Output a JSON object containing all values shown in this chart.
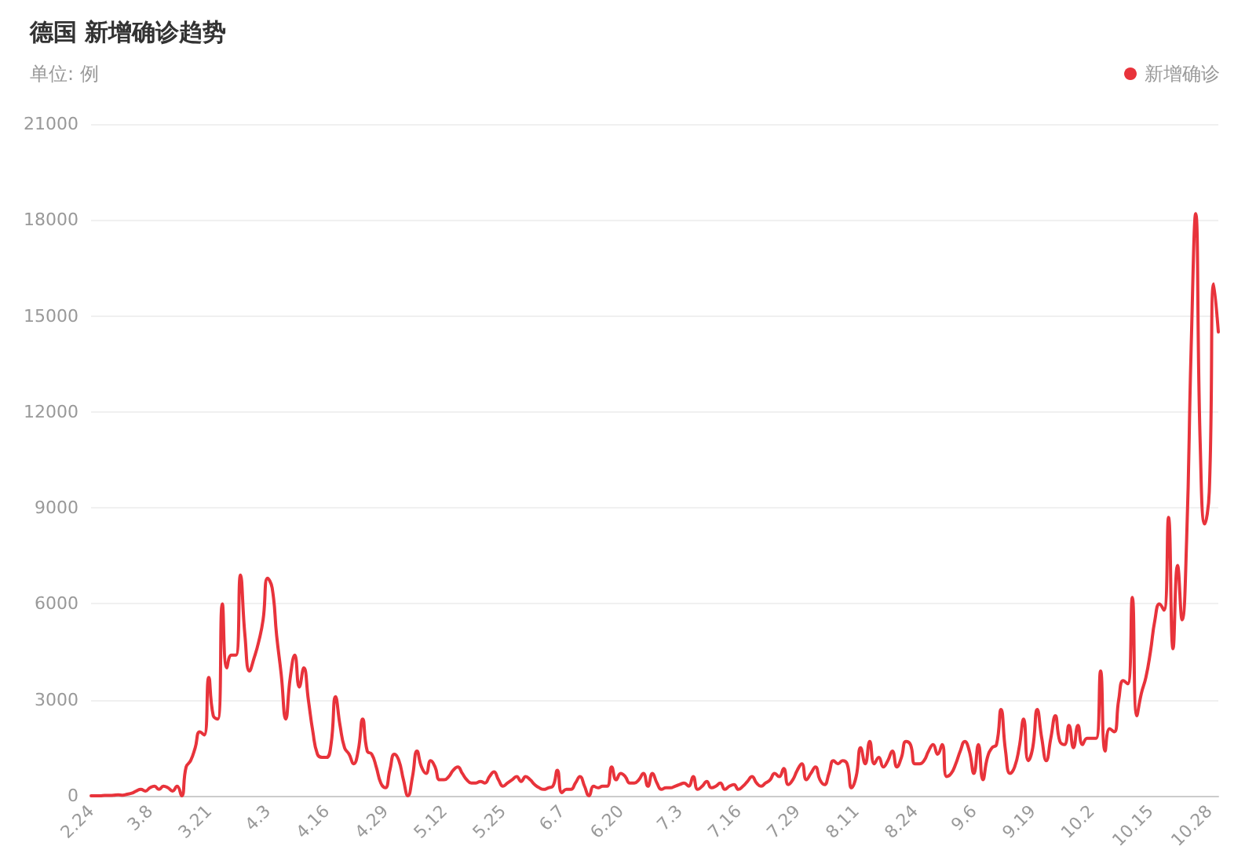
{
  "chart_data": {
    "type": "line",
    "title": "德国 新增确诊趋势",
    "subtitle": "单位: 例",
    "categories": [
      "2.24",
      null,
      null,
      null,
      null,
      null,
      null,
      null,
      null,
      null,
      null,
      null,
      null,
      "3.8",
      null,
      null,
      null,
      null,
      null,
      null,
      null,
      null,
      null,
      null,
      null,
      null,
      "3.21",
      null,
      null,
      null,
      null,
      null,
      null,
      null,
      null,
      null,
      null,
      null,
      null,
      "4.3",
      null,
      null,
      null,
      null,
      null,
      null,
      null,
      null,
      null,
      null,
      null,
      null,
      "4.16",
      null,
      null,
      null,
      null,
      null,
      null,
      null,
      null,
      null,
      null,
      null,
      null,
      "4.29",
      null,
      null,
      null,
      null,
      null,
      null,
      null,
      null,
      null,
      null,
      null,
      null,
      "5.12",
      null,
      null,
      null,
      null,
      null,
      null,
      null,
      null,
      null,
      null,
      null,
      null,
      "5.25",
      null,
      null,
      null,
      null,
      null,
      null,
      null,
      null,
      null,
      null,
      null,
      null,
      "6.7",
      null,
      null,
      null,
      null,
      null,
      null,
      null,
      null,
      null,
      null,
      null,
      null,
      "6.20",
      null,
      null,
      null,
      null,
      null,
      null,
      null,
      null,
      null,
      null,
      null,
      null,
      "7.3",
      null,
      null,
      null,
      null,
      null,
      null,
      null,
      null,
      null,
      null,
      null,
      null,
      "7.16",
      null,
      null,
      null,
      null,
      null,
      null,
      null,
      null,
      null,
      null,
      null,
      null,
      "7.29",
      null,
      null,
      null,
      null,
      null,
      null,
      null,
      null,
      null,
      null,
      null,
      null,
      "8.11",
      null,
      null,
      null,
      null,
      null,
      null,
      null,
      null,
      null,
      null,
      null,
      null,
      "8.24",
      null,
      null,
      null,
      null,
      null,
      null,
      null,
      null,
      null,
      null,
      null,
      null,
      "9.6",
      null,
      null,
      null,
      null,
      null,
      null,
      null,
      null,
      null,
      null,
      null,
      null,
      "9.19",
      null,
      null,
      null,
      null,
      null,
      null,
      null,
      null,
      null,
      null,
      null,
      null,
      "10.2",
      null,
      null,
      null,
      null,
      null,
      null,
      null,
      null,
      null,
      null,
      null,
      null,
      "10.15",
      null,
      null,
      null,
      null,
      null,
      null,
      null,
      null,
      null,
      null,
      null,
      null,
      "10.28",
      null,
      null
    ],
    "series": [
      {
        "name": "新增确诊",
        "color": "#e8333b",
        "values": [
          0,
          0,
          0,
          10,
          10,
          20,
          30,
          20,
          50,
          80,
          150,
          200,
          150,
          250,
          300,
          200,
          300,
          250,
          150,
          300,
          0,
          900,
          1100,
          1500,
          2000,
          1900,
          3700,
          2500,
          2400,
          6000,
          4000,
          4400,
          4400,
          6900,
          5000,
          3900,
          4300,
          4800,
          5500,
          6800,
          6500,
          5000,
          3800,
          2400,
          3700,
          4400,
          3400,
          4000,
          3000,
          2000,
          1300,
          1200,
          1200,
          1600,
          3100,
          2200,
          1500,
          1300,
          1000,
          1400,
          2400,
          1400,
          1300,
          900,
          400,
          250,
          800,
          1300,
          1100,
          500,
          0,
          600,
          1400,
          900,
          700,
          1100,
          900,
          500,
          500,
          600,
          800,
          900,
          700,
          500,
          400,
          400,
          450,
          400,
          600,
          750,
          500,
          300,
          400,
          500,
          600,
          450,
          600,
          500,
          350,
          250,
          200,
          250,
          300,
          800,
          100,
          200,
          200,
          400,
          600,
          300,
          0,
          300,
          250,
          300,
          300,
          900,
          500,
          700,
          600,
          400,
          400,
          500,
          700,
          300,
          700,
          400,
          200,
          250,
          250,
          300,
          350,
          400,
          300,
          600,
          200,
          300,
          450,
          250,
          300,
          400,
          200,
          300,
          350,
          200,
          300,
          450,
          600,
          400,
          300,
          400,
          500,
          700,
          600,
          850,
          350,
          500,
          800,
          1000,
          500,
          700,
          900,
          500,
          350,
          700,
          1100,
          1000,
          1100,
          1000,
          250,
          600,
          1500,
          1000,
          1700,
          1000,
          1200,
          900,
          1100,
          1400,
          900,
          1200,
          1700,
          1600,
          1000,
          1000,
          1100,
          1400,
          1600,
          1300,
          1600,
          600,
          700,
          1000,
          1400,
          1700,
          1400,
          700,
          1600,
          500,
          1200,
          1500,
          1600,
          2700,
          1400,
          700,
          900,
          1500,
          2400,
          1100,
          1500,
          2700,
          1800,
          1100,
          1800,
          2500,
          1700,
          1600,
          2200,
          1500,
          2200,
          1600,
          1800,
          1800,
          1800,
          3900,
          1400,
          2100,
          2000,
          3000,
          3600,
          3500,
          6200,
          2500,
          3200,
          3700,
          4500,
          5500,
          6000,
          5800,
          8700,
          4600,
          7200,
          5500,
          8000,
          14000,
          18200,
          11000,
          8500,
          9500,
          16000,
          14500
        ]
      }
    ],
    "ylim": [
      0,
      21000
    ],
    "yticks": [
      0,
      3000,
      6000,
      9000,
      12000,
      15000,
      18000,
      21000
    ],
    "grid": "y",
    "legend": "top right",
    "marker": "none",
    "line_style": "solid"
  }
}
